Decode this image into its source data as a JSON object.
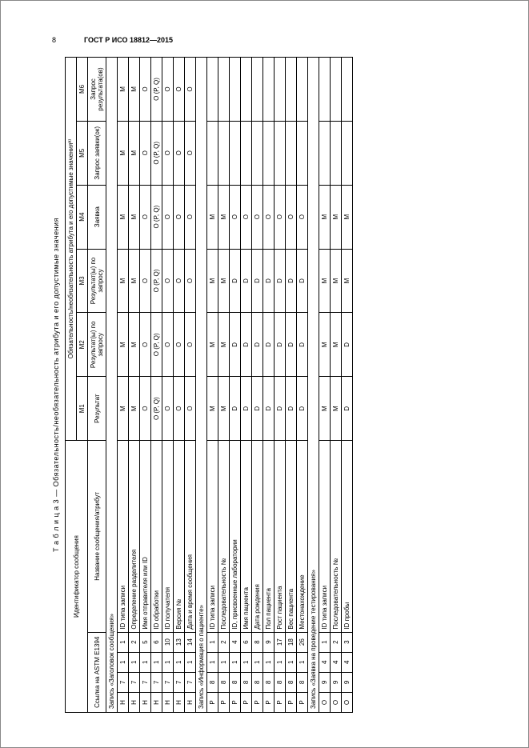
{
  "page": {
    "number": "8",
    "doc_code": "ГОСТ Р ИСО 18812—2015"
  },
  "table": {
    "caption": "Т а б л и ц а  3 — Обязательность/необязательность атрибута и его допустимые значения",
    "header": {
      "ident": "Идентификатор сообщения",
      "mandatory_group": "Обязательность/необязательность атрибута и его допустимые значенияª⁾",
      "ref": "Ссылка\nна ASTM E1394",
      "msg_name": "Название сообщения/атрибут",
      "m1": "M1",
      "m2": "M2",
      "m3": "M3",
      "m4": "M4",
      "m5": "M5",
      "m6": "M6",
      "m1s": "Результат",
      "m2s": "Результат(ы)\nпо запросу",
      "m3s": "Результат(ы)\nпо запросу",
      "m4s": "Заявка",
      "m5s": "Запрос\nзаявки(ок)",
      "m6s": "Запрос\nрезультата(ов)"
    },
    "sections": [
      {
        "title": "Запись «Заголовок сообщения»",
        "rows": [
          {
            "a": "H",
            "b": "7",
            "c": "1",
            "d": "1",
            "name": "ID типа записи",
            "m1": "M",
            "m2": "M",
            "m3": "M",
            "m4": "M",
            "m5": "M",
            "m6": "M"
          },
          {
            "a": "H",
            "b": "7",
            "c": "1",
            "d": "2",
            "name": "Определение разделителя",
            "m1": "M",
            "m2": "M",
            "m3": "M",
            "m4": "M",
            "m5": "M",
            "m6": "M"
          },
          {
            "a": "H",
            "b": "7",
            "c": "1",
            "d": "5",
            "name": "Имя отправителя или ID",
            "m1": "O",
            "m2": "O",
            "m3": "O",
            "m4": "O",
            "m5": "O",
            "m6": "O"
          },
          {
            "a": "H",
            "b": "7",
            "c": "1",
            "d": "6",
            "name": "ID обработки",
            "m1": "O (P, Q)",
            "m2": "O (P, Q)",
            "m3": "O (P, Q)",
            "m4": "O (P, Q)",
            "m5": "O (P, Q)",
            "m6": "O (P, Q)"
          },
          {
            "a": "H",
            "b": "7",
            "c": "1",
            "d": "10",
            "name": "ID получателя",
            "m1": "O",
            "m2": "O",
            "m3": "O",
            "m4": "O",
            "m5": "O",
            "m6": "O"
          },
          {
            "a": "H",
            "b": "7",
            "c": "1",
            "d": "13",
            "name": "Версия №",
            "m1": "O",
            "m2": "O",
            "m3": "O",
            "m4": "O",
            "m5": "O",
            "m6": "O"
          },
          {
            "a": "H",
            "b": "7",
            "c": "1",
            "d": "14",
            "name": "Дата и время сообщения",
            "m1": "O",
            "m2": "O",
            "m3": "O",
            "m4": "O",
            "m5": "O",
            "m6": "O"
          }
        ]
      },
      {
        "title": "Запись «Информация о пациенте»",
        "rows": [
          {
            "a": "P",
            "b": "8",
            "c": "1",
            "d": "1",
            "name": "ID типа записи",
            "m1": "M",
            "m2": "M",
            "m3": "M",
            "m4": "M",
            "m5": "",
            "m6": ""
          },
          {
            "a": "P",
            "b": "8",
            "c": "1",
            "d": "2",
            "name": "Последовательность №",
            "m1": "M",
            "m2": "M",
            "m3": "M",
            "m4": "M",
            "m5": "",
            "m6": ""
          },
          {
            "a": "P",
            "b": "8",
            "c": "1",
            "d": "4",
            "name": "ID, присвоенные лаборатории",
            "m1": "D",
            "m2": "D",
            "m3": "D",
            "m4": "O",
            "m5": "",
            "m6": ""
          },
          {
            "a": "P",
            "b": "8",
            "c": "1",
            "d": "6",
            "name": "Имя пациента",
            "m1": "D",
            "m2": "D",
            "m3": "D",
            "m4": "O",
            "m5": "",
            "m6": ""
          },
          {
            "a": "P",
            "b": "8",
            "c": "1",
            "d": "8",
            "name": "Дата рождения",
            "m1": "D",
            "m2": "D",
            "m3": "D",
            "m4": "O",
            "m5": "",
            "m6": ""
          },
          {
            "a": "P",
            "b": "8",
            "c": "1",
            "d": "9",
            "name": "Пол пациента",
            "m1": "D",
            "m2": "D",
            "m3": "D",
            "m4": "O",
            "m5": "",
            "m6": ""
          },
          {
            "a": "P",
            "b": "8",
            "c": "1",
            "d": "17",
            "name": "Рост пациента",
            "m1": "D",
            "m2": "D",
            "m3": "D",
            "m4": "O",
            "m5": "",
            "m6": ""
          },
          {
            "a": "P",
            "b": "8",
            "c": "1",
            "d": "18",
            "name": "Вес пациента",
            "m1": "D",
            "m2": "D",
            "m3": "D",
            "m4": "O",
            "m5": "",
            "m6": ""
          },
          {
            "a": "P",
            "b": "8",
            "c": "1",
            "d": "26",
            "name": "Местонахождение",
            "m1": "D",
            "m2": "D",
            "m3": "D",
            "m4": "O",
            "m5": "",
            "m6": ""
          }
        ]
      },
      {
        "title": "Запись «Заявка на проведение тестирования»",
        "rows": [
          {
            "a": "O",
            "b": "9",
            "c": "4",
            "d": "1",
            "name": "ID типа записи",
            "m1": "M",
            "m2": "M",
            "m3": "M",
            "m4": "M",
            "m5": "",
            "m6": ""
          },
          {
            "a": "O",
            "b": "9",
            "c": "4",
            "d": "2",
            "name": "Последовательность №",
            "m1": "M",
            "m2": "M",
            "m3": "M",
            "m4": "M",
            "m5": "",
            "m6": ""
          },
          {
            "a": "O",
            "b": "9",
            "c": "4",
            "d": "3",
            "name": "ID пробы",
            "m1": "D",
            "m2": "D",
            "m3": "M",
            "m4": "M",
            "m5": "",
            "m6": ""
          }
        ]
      }
    ]
  }
}
